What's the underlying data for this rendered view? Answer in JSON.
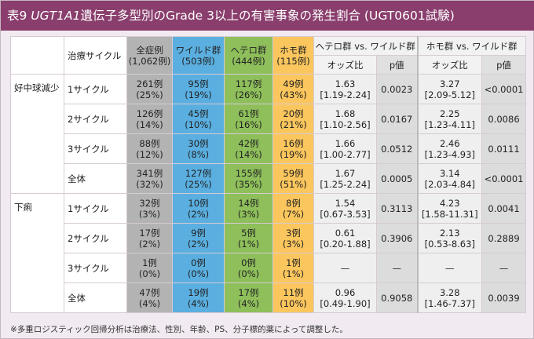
{
  "title": {
    "prefix": "表9 ",
    "gene": "UGT1A1",
    "rest": "遺伝子多型別のGrade 3以上の有害事象の発生割合 (UGT0601試験)"
  },
  "headers": {
    "cycle": "治療サイクル",
    "all": {
      "label": "全症例",
      "n": "(1,062例)"
    },
    "wild": {
      "label": "ワイルド群",
      "n": "(503例)"
    },
    "het": {
      "label": "ヘテロ群",
      "n": "(444例)"
    },
    "homo": {
      "label": "ホモ群",
      "n": "(115例)"
    },
    "het_vs_wild": "ヘテロ群 vs. ワイルド群",
    "homo_vs_wild": "ホモ群 vs. ワイルド群",
    "odds": "オッズ比",
    "p": "p値"
  },
  "groups": [
    {
      "name": "好中球減少",
      "rows": [
        {
          "cycle": "1サイクル",
          "all": [
            "261例",
            "(25%)"
          ],
          "wild": [
            "95例",
            "(19%)"
          ],
          "het": [
            "117例",
            "(26%)"
          ],
          "homo": [
            "49例",
            "(43%)"
          ],
          "or1": [
            "1.63",
            "[1.19-2.24]"
          ],
          "p1": "0.0023",
          "or2": [
            "3.27",
            "[2.09-5.12]"
          ],
          "p2": "<0.0001"
        },
        {
          "cycle": "2サイクル",
          "all": [
            "126例",
            "(14%)"
          ],
          "wild": [
            "45例",
            "(10%)"
          ],
          "het": [
            "61例",
            "(16%)"
          ],
          "homo": [
            "20例",
            "(21%)"
          ],
          "or1": [
            "1.68",
            "[1.10-2.56]"
          ],
          "p1": "0.0167",
          "or2": [
            "2.25",
            "[1.23-4.11]"
          ],
          "p2": "0.0086"
        },
        {
          "cycle": "3サイクル",
          "all": [
            "88例",
            "(12%)"
          ],
          "wild": [
            "30例",
            "(8%)"
          ],
          "het": [
            "42例",
            "(14%)"
          ],
          "homo": [
            "16例",
            "(19%)"
          ],
          "or1": [
            "1.66",
            "[1.00-2.77]"
          ],
          "p1": "0.0512",
          "or2": [
            "2.46",
            "[1.23-4.93]"
          ],
          "p2": "0.0111"
        },
        {
          "cycle": "全体",
          "all": [
            "341例",
            "(32%)"
          ],
          "wild": [
            "127例",
            "(25%)"
          ],
          "het": [
            "155例",
            "(35%)"
          ],
          "homo": [
            "59例",
            "(51%)"
          ],
          "or1": [
            "1.67",
            "[1.25-2.24]"
          ],
          "p1": "0.0005",
          "or2": [
            "3.14",
            "[2.03-4.84]"
          ],
          "p2": "<0.0001"
        }
      ]
    },
    {
      "name": "下痢",
      "rows": [
        {
          "cycle": "1サイクル",
          "all": [
            "32例",
            "(3%)"
          ],
          "wild": [
            "10例",
            "(2%)"
          ],
          "het": [
            "14例",
            "(3%)"
          ],
          "homo": [
            "8例",
            "(7%)"
          ],
          "or1": [
            "1.54",
            "[0.67-3.53]"
          ],
          "p1": "0.3113",
          "or2": [
            "4.23",
            "[1.58-11.31]"
          ],
          "p2": "0.0041"
        },
        {
          "cycle": "2サイクル",
          "all": [
            "17例",
            "(2%)"
          ],
          "wild": [
            "9例",
            "(2%)"
          ],
          "het": [
            "5例",
            "(1%)"
          ],
          "homo": [
            "3例",
            "(3%)"
          ],
          "or1": [
            "0.61",
            "[0.20-1.88]"
          ],
          "p1": "0.3906",
          "or2": [
            "2.13",
            "[0.53-8.63]"
          ],
          "p2": "0.2889"
        },
        {
          "cycle": "3サイクル",
          "all": [
            "1例",
            "(0%)"
          ],
          "wild": [
            "0例",
            "(0%)"
          ],
          "het": [
            "0例",
            "(0%)"
          ],
          "homo": [
            "1例",
            "(1%)"
          ],
          "or1": [
            "—",
            ""
          ],
          "p1": "—",
          "or2": [
            "—",
            ""
          ],
          "p2": "—"
        },
        {
          "cycle": "全体",
          "all": [
            "47例",
            "(4%)"
          ],
          "wild": [
            "19例",
            "(4%)"
          ],
          "het": [
            "17例",
            "(4%)"
          ],
          "homo": [
            "11例",
            "(10%)"
          ],
          "or1": [
            "0.96",
            "[0.49-1.90]"
          ],
          "p1": "0.9058",
          "or2": [
            "3.28",
            "[1.46-7.37]"
          ],
          "p2": "0.0039"
        }
      ]
    }
  ],
  "footnote": "※多重ロジスティック回帰分析は治療法、性別、年齢、PS、分子標的薬によって調整した。",
  "colors": {
    "title_bg": "#8a3e6d",
    "all": "#b3b3b3",
    "wild": "#5aafe0",
    "het": "#8ebf5b",
    "homo": "#fbc65d",
    "page_bg": "#f1eaf0"
  }
}
